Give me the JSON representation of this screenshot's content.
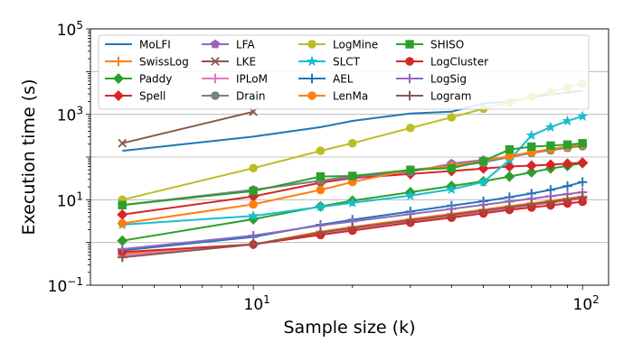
{
  "chart_data": {
    "type": "line",
    "xscale": "log",
    "yscale": "log",
    "xlabel": "Sample size (k)",
    "ylabel": "Execution time (s)",
    "xlim": [
      3.2,
      120
    ],
    "ylim": [
      0.1,
      100000
    ],
    "grid": "y-major",
    "legend": "top-left",
    "x_ticks": [
      {
        "value": 10,
        "base": "10",
        "exp": "1"
      },
      {
        "value": 100,
        "base": "10",
        "exp": "2"
      }
    ],
    "y_ticks": [
      {
        "value": 0.1,
        "base": "10",
        "exp": "−1"
      },
      {
        "value": 10,
        "base": "10",
        "exp": "1"
      },
      {
        "value": 1000,
        "base": "10",
        "exp": "3"
      },
      {
        "value": 100000,
        "base": "10",
        "exp": "5"
      }
    ],
    "series": [
      {
        "name": "MoLFI",
        "color": "#1f77b4",
        "marker": "none",
        "x": [
          4,
          10,
          16,
          20,
          30,
          40,
          50,
          60,
          70,
          80,
          90,
          100
        ],
        "y": [
          140,
          300,
          500,
          700,
          1050,
          1150,
          1800,
          2000,
          2500,
          2900,
          3200,
          3600
        ]
      },
      {
        "name": "SwissLog",
        "color": "#ff7f0e",
        "marker": "plus",
        "x": [
          4,
          10,
          16,
          20,
          30,
          40,
          50,
          60,
          70,
          80,
          90,
          100
        ],
        "y": [
          0.55,
          0.9,
          1.8,
          2.3,
          3.5,
          4.7,
          5.9,
          7.1,
          8.3,
          9.5,
          10.7,
          12
        ]
      },
      {
        "name": "Paddy",
        "color": "#2ca02c",
        "marker": "diamond",
        "x": [
          4,
          10,
          16,
          20,
          30,
          40,
          50,
          60,
          70,
          80,
          90,
          100
        ],
        "y": [
          1.1,
          3.5,
          7,
          9.5,
          15,
          21,
          27,
          35,
          44,
          54,
          62,
          72
        ]
      },
      {
        "name": "Spell",
        "color": "#d62728",
        "marker": "diamond",
        "x": [
          4,
          10,
          16,
          20,
          30,
          40,
          50,
          60,
          70,
          80,
          90,
          100
        ],
        "y": [
          4.5,
          12,
          25,
          32,
          40,
          47,
          54,
          60,
          63,
          66,
          70,
          74
        ]
      },
      {
        "name": "LFA",
        "color": "#9467bd",
        "marker": "pentagon",
        "x": [
          4,
          10,
          16,
          20,
          30,
          40,
          50,
          60,
          70,
          80,
          90,
          100
        ],
        "y": [
          7.5,
          17,
          28,
          34,
          45,
          70,
          85,
          100,
          125,
          145,
          165,
          185
        ]
      },
      {
        "name": "LKE",
        "color": "#8c564b",
        "marker": "x",
        "x": [
          4,
          10
        ],
        "y": [
          210,
          1150
        ]
      },
      {
        "name": "IPLoM",
        "color": "#e377c2",
        "marker": "plus",
        "x": [
          4,
          10,
          16,
          20,
          30,
          40,
          50,
          60,
          70,
          80,
          90,
          100
        ],
        "y": [
          0.5,
          0.9,
          1.6,
          2.1,
          3.1,
          4.1,
          5.2,
          6.3,
          7.4,
          8.5,
          9.6,
          10.8
        ]
      },
      {
        "name": "Drain",
        "color": "#7f7f7f",
        "marker": "circle",
        "x": [
          4,
          10,
          16,
          20,
          30,
          40,
          50,
          60,
          70,
          80,
          90,
          100
        ],
        "y": [
          7.5,
          17,
          28,
          36,
          48,
          60,
          75,
          100,
          125,
          145,
          165,
          180
        ]
      },
      {
        "name": "LogMine",
        "color": "#bcbd22",
        "marker": "circle",
        "x": [
          4,
          10,
          16,
          20,
          30,
          40,
          50,
          60,
          70,
          80,
          90,
          100
        ],
        "y": [
          10,
          55,
          140,
          210,
          480,
          850,
          1350,
          1900,
          2600,
          3300,
          4200,
          5300
        ]
      },
      {
        "name": "SLCT",
        "color": "#17becf",
        "marker": "star",
        "x": [
          4,
          10,
          16,
          20,
          30,
          40,
          50,
          60,
          70,
          80,
          90,
          100
        ],
        "y": [
          2.6,
          4.2,
          6.8,
          8.5,
          12.5,
          17.5,
          26,
          85,
          320,
          500,
          700,
          900
        ]
      },
      {
        "name": "AEL",
        "color": "#1f77b4",
        "marker": "plus",
        "x": [
          4,
          10,
          16,
          20,
          30,
          40,
          50,
          60,
          70,
          80,
          90,
          100
        ],
        "y": [
          0.65,
          1.35,
          2.6,
          3.4,
          5.3,
          7.3,
          9.2,
          11.5,
          14,
          17,
          21,
          26
        ]
      },
      {
        "name": "LenMa",
        "color": "#ff7f0e",
        "marker": "circle",
        "x": [
          4,
          10,
          16,
          20,
          30,
          40,
          50,
          60,
          70,
          80,
          90,
          100
        ],
        "y": [
          2.8,
          7.8,
          17,
          26,
          50,
          62,
          82,
          105,
          130,
          155,
          175,
          195
        ]
      },
      {
        "name": "SHISO",
        "color": "#2ca02c",
        "marker": "square",
        "x": [
          4,
          10,
          16,
          20,
          30,
          40,
          50,
          60,
          70,
          80,
          90,
          100
        ],
        "y": [
          7.5,
          16,
          35,
          36,
          50,
          55,
          80,
          150,
          175,
          185,
          195,
          210
        ]
      },
      {
        "name": "LogCluster",
        "color": "#d62728",
        "marker": "circle",
        "x": [
          4,
          10,
          16,
          20,
          30,
          40,
          50,
          60,
          70,
          80,
          90,
          100
        ],
        "y": [
          0.6,
          0.9,
          1.5,
          1.9,
          2.9,
          3.8,
          4.8,
          5.8,
          6.6,
          7.4,
          8.2,
          9
        ]
      },
      {
        "name": "LogSig",
        "color": "#9467bd",
        "marker": "plus",
        "x": [
          4,
          10,
          16,
          20,
          30,
          40,
          50,
          60,
          70,
          80,
          90,
          100
        ],
        "y": [
          0.7,
          1.45,
          2.5,
          3.1,
          4.6,
          6.1,
          7.6,
          9.1,
          10.6,
          12.1,
          13.6,
          15
        ]
      },
      {
        "name": "Logram",
        "color": "#8c564b",
        "marker": "plus",
        "x": [
          4,
          10,
          16,
          20,
          30,
          40,
          50,
          60,
          70,
          80,
          90,
          100
        ],
        "y": [
          0.45,
          0.9,
          1.7,
          2.2,
          3.3,
          4.4,
          5.6,
          6.7,
          7.8,
          8.9,
          10.1,
          11.3
        ]
      }
    ]
  }
}
